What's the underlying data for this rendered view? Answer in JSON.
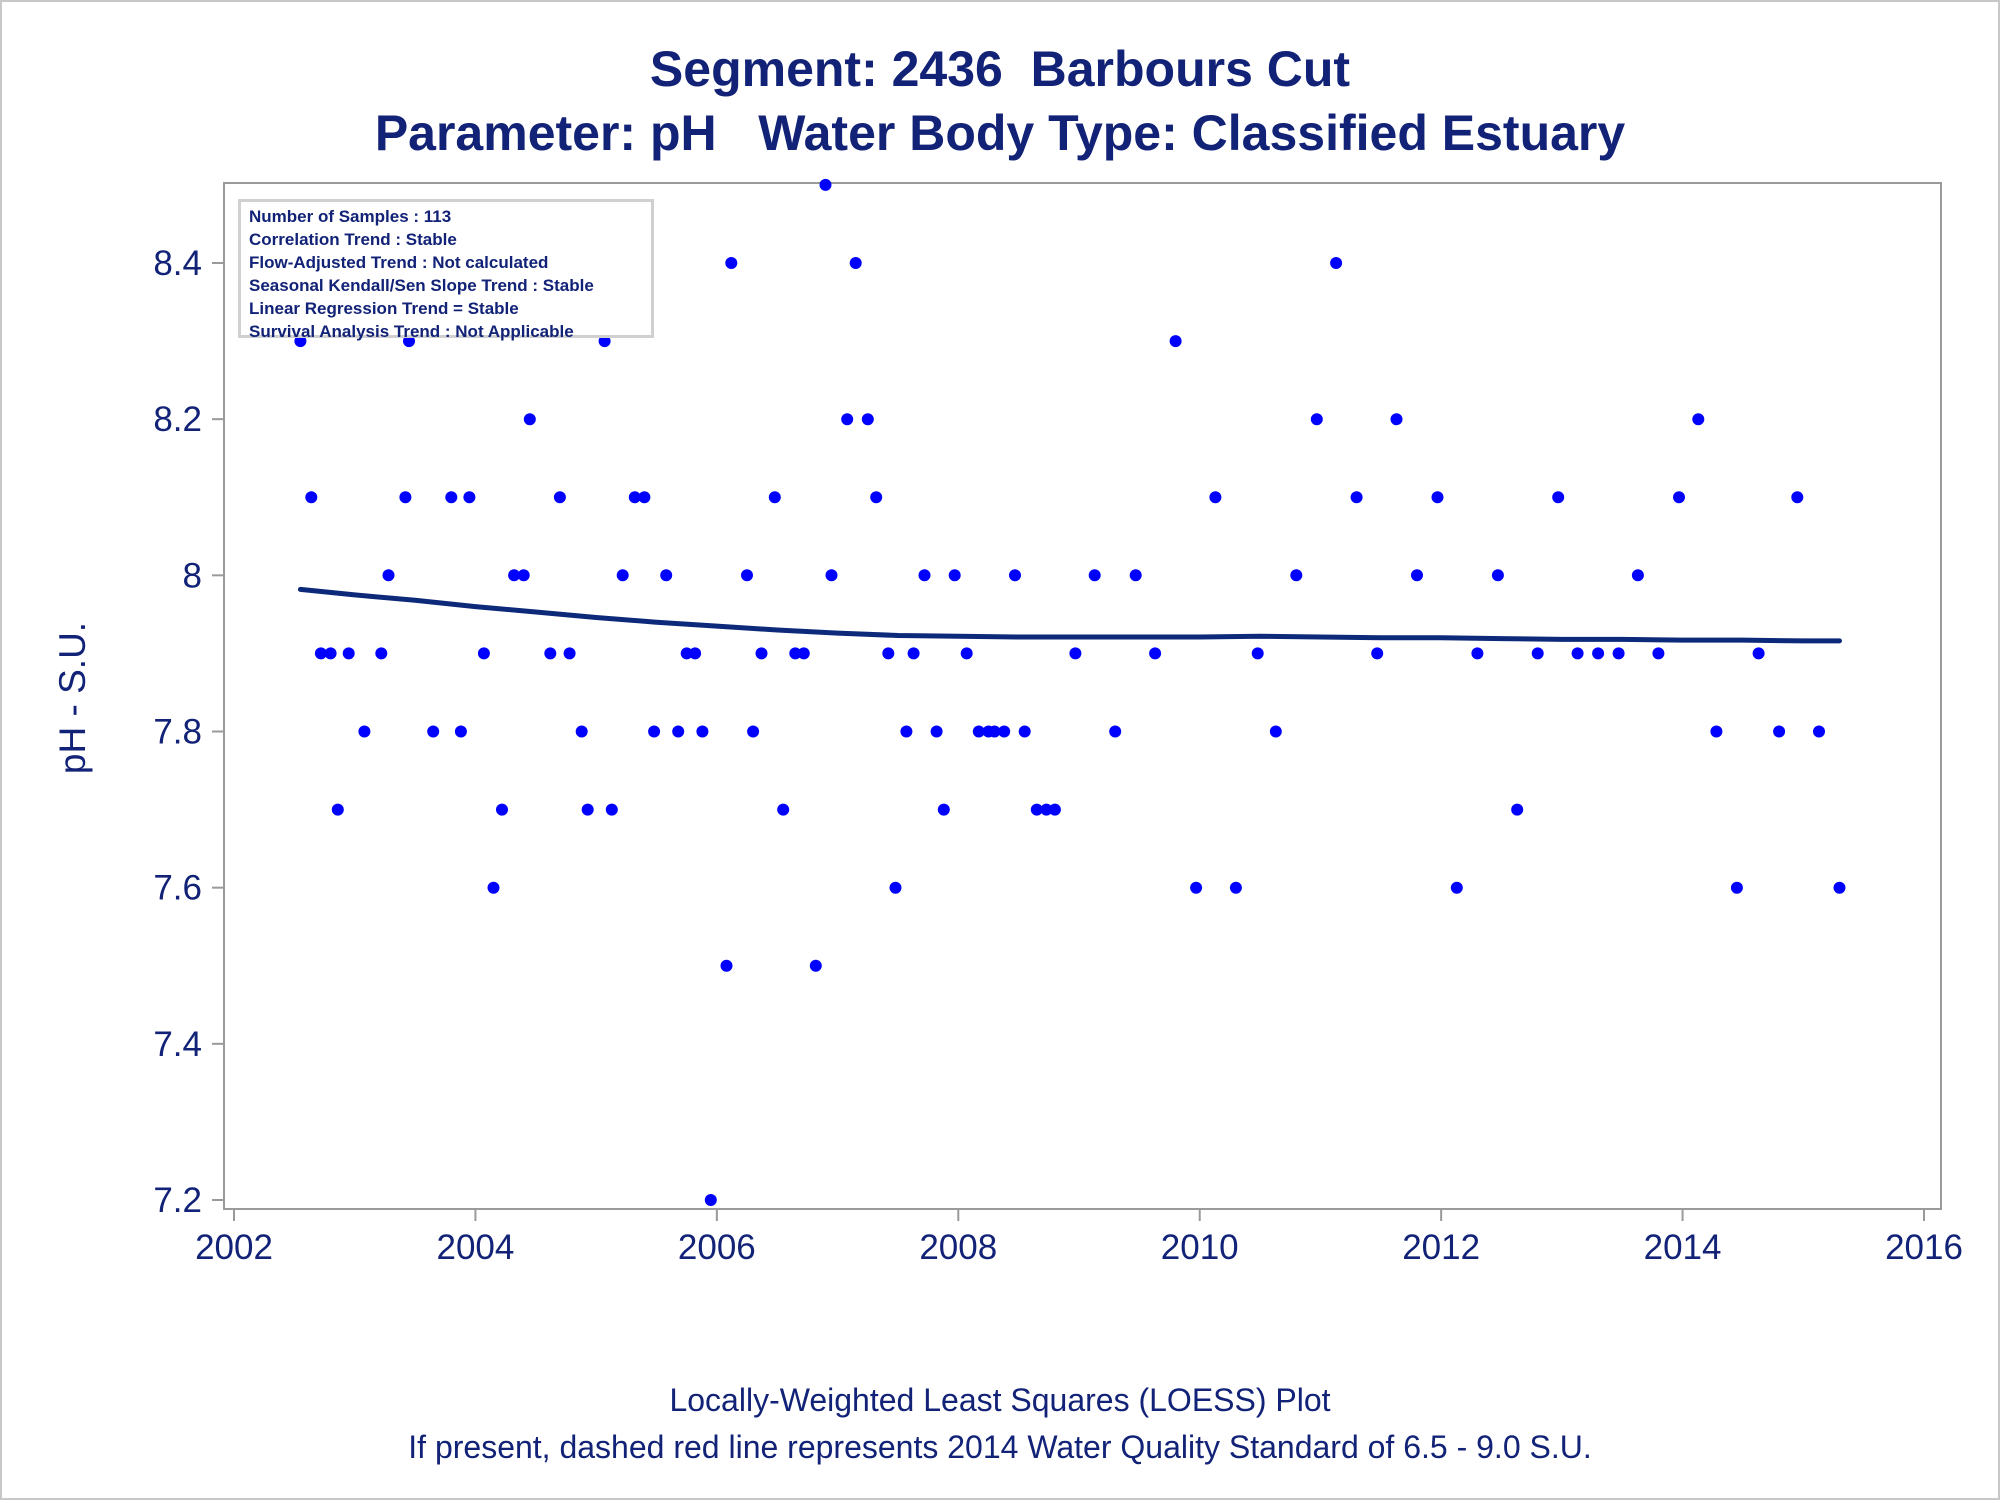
{
  "title_line1": "Segment: 2436  Barbours Cut",
  "title_line2": "Parameter: pH   Water Body Type: Classified Estuary",
  "footnote_line1": "Locally-Weighted Least Squares (LOESS) Plot",
  "footnote_line2": "If present, dashed red line represents 2014 Water Quality Standard of 6.5 - 9.0 S.U.",
  "info_box": [
    "Number of Samples : 113",
    "Correlation Trend : Stable",
    "Flow-Adjusted Trend : Not calculated",
    "Seasonal Kendall/Sen Slope Trend : Stable",
    "Linear Regression Trend = Stable",
    "Survival Analysis Trend : Not Applicable"
  ],
  "colors": {
    "text": "#112277",
    "points": "#0000ff",
    "loess_line": "#0d2a7a",
    "axis": "#9a9a9a"
  },
  "chart_data": {
    "type": "scatter",
    "xlabel": "",
    "ylabel": "pH - S.U.",
    "xlim": [
      2002,
      2016
    ],
    "ylim": [
      7.2,
      8.52
    ],
    "x_ticks": [
      2002,
      2004,
      2006,
      2008,
      2010,
      2012,
      2014,
      2016
    ],
    "y_ticks": [
      7.2,
      7.4,
      7.6,
      7.8,
      8,
      8.2,
      8.4
    ],
    "y_tick_labels": [
      "7.2",
      "7.4",
      "7.6",
      "7.8",
      "8",
      "8.2",
      "8.4"
    ],
    "grid": false,
    "series": [
      {
        "type": "scatter",
        "points": [
          [
            2002.55,
            8.3
          ],
          [
            2002.64,
            8.1
          ],
          [
            2002.72,
            7.9
          ],
          [
            2002.8,
            7.9
          ],
          [
            2002.86,
            7.7
          ],
          [
            2002.95,
            7.9
          ],
          [
            2003.08,
            7.8
          ],
          [
            2003.13,
            8.4
          ],
          [
            2003.22,
            7.9
          ],
          [
            2003.28,
            8.0
          ],
          [
            2003.42,
            8.1
          ],
          [
            2003.45,
            8.3
          ],
          [
            2003.65,
            7.8
          ],
          [
            2003.8,
            8.1
          ],
          [
            2003.88,
            7.8
          ],
          [
            2003.95,
            8.1
          ],
          [
            2004.07,
            7.9
          ],
          [
            2004.15,
            7.6
          ],
          [
            2004.22,
            7.7
          ],
          [
            2004.32,
            8.0
          ],
          [
            2004.4,
            8.0
          ],
          [
            2004.45,
            8.2
          ],
          [
            2004.55,
            8.4
          ],
          [
            2004.62,
            7.9
          ],
          [
            2004.7,
            8.1
          ],
          [
            2004.78,
            7.9
          ],
          [
            2004.88,
            7.8
          ],
          [
            2004.93,
            7.7
          ],
          [
            2005.07,
            8.3
          ],
          [
            2005.13,
            7.7
          ],
          [
            2005.22,
            8.0
          ],
          [
            2005.32,
            8.1
          ],
          [
            2005.4,
            8.1
          ],
          [
            2005.48,
            7.8
          ],
          [
            2005.58,
            8.0
          ],
          [
            2005.68,
            7.8
          ],
          [
            2005.75,
            7.9
          ],
          [
            2005.82,
            7.9
          ],
          [
            2005.88,
            7.8
          ],
          [
            2005.95,
            7.2
          ],
          [
            2006.08,
            7.5
          ],
          [
            2006.12,
            8.4
          ],
          [
            2006.25,
            8.0
          ],
          [
            2006.3,
            7.8
          ],
          [
            2006.37,
            7.9
          ],
          [
            2006.48,
            8.1
          ],
          [
            2006.55,
            7.7
          ],
          [
            2006.65,
            7.9
          ],
          [
            2006.72,
            7.9
          ],
          [
            2006.82,
            7.5
          ],
          [
            2006.9,
            8.5
          ],
          [
            2006.95,
            8.0
          ],
          [
            2007.08,
            8.2
          ],
          [
            2007.15,
            8.4
          ],
          [
            2007.25,
            8.2
          ],
          [
            2007.32,
            8.1
          ],
          [
            2007.42,
            7.9
          ],
          [
            2007.48,
            7.6
          ],
          [
            2007.57,
            7.8
          ],
          [
            2007.63,
            7.9
          ],
          [
            2007.72,
            8.0
          ],
          [
            2007.82,
            7.8
          ],
          [
            2007.88,
            7.7
          ],
          [
            2007.97,
            8.0
          ],
          [
            2008.07,
            7.9
          ],
          [
            2008.17,
            7.8
          ],
          [
            2008.25,
            7.8
          ],
          [
            2008.3,
            7.8
          ],
          [
            2008.38,
            7.8
          ],
          [
            2008.47,
            8.0
          ],
          [
            2008.55,
            7.8
          ],
          [
            2008.65,
            7.7
          ],
          [
            2008.73,
            7.7
          ],
          [
            2008.8,
            7.7
          ],
          [
            2008.97,
            7.9
          ],
          [
            2009.13,
            8.0
          ],
          [
            2009.3,
            7.8
          ],
          [
            2009.47,
            8.0
          ],
          [
            2009.63,
            7.9
          ],
          [
            2009.8,
            8.3
          ],
          [
            2009.97,
            7.6
          ],
          [
            2010.13,
            8.1
          ],
          [
            2010.3,
            7.6
          ],
          [
            2010.48,
            7.9
          ],
          [
            2010.63,
            7.8
          ],
          [
            2010.8,
            8.0
          ],
          [
            2010.97,
            8.2
          ],
          [
            2011.13,
            8.4
          ],
          [
            2011.3,
            8.1
          ],
          [
            2011.47,
            7.9
          ],
          [
            2011.63,
            8.2
          ],
          [
            2011.8,
            8.0
          ],
          [
            2011.97,
            8.1
          ],
          [
            2012.13,
            7.6
          ],
          [
            2012.3,
            7.9
          ],
          [
            2012.47,
            8.0
          ],
          [
            2012.63,
            7.7
          ],
          [
            2012.8,
            7.9
          ],
          [
            2012.97,
            8.1
          ],
          [
            2013.13,
            7.9
          ],
          [
            2013.3,
            7.9
          ],
          [
            2013.47,
            7.9
          ],
          [
            2013.63,
            8.0
          ],
          [
            2013.8,
            7.9
          ],
          [
            2013.97,
            8.1
          ],
          [
            2014.13,
            8.2
          ],
          [
            2014.28,
            7.8
          ],
          [
            2014.45,
            7.6
          ],
          [
            2014.63,
            7.9
          ],
          [
            2014.8,
            7.8
          ],
          [
            2014.95,
            8.1
          ],
          [
            2015.13,
            7.8
          ],
          [
            2015.3,
            7.6
          ]
        ]
      },
      {
        "type": "line",
        "points": [
          [
            2002.55,
            7.982
          ],
          [
            2003.0,
            7.975
          ],
          [
            2003.5,
            7.968
          ],
          [
            2004.0,
            7.96
          ],
          [
            2004.5,
            7.953
          ],
          [
            2005.0,
            7.946
          ],
          [
            2005.5,
            7.94
          ],
          [
            2006.0,
            7.935
          ],
          [
            2006.5,
            7.93
          ],
          [
            2007.0,
            7.926
          ],
          [
            2007.5,
            7.923
          ],
          [
            2008.0,
            7.922
          ],
          [
            2008.5,
            7.921
          ],
          [
            2009.0,
            7.921
          ],
          [
            2009.5,
            7.921
          ],
          [
            2010.0,
            7.921
          ],
          [
            2010.5,
            7.922
          ],
          [
            2011.0,
            7.921
          ],
          [
            2011.5,
            7.92
          ],
          [
            2012.0,
            7.92
          ],
          [
            2012.5,
            7.919
          ],
          [
            2013.0,
            7.918
          ],
          [
            2013.5,
            7.918
          ],
          [
            2014.0,
            7.917
          ],
          [
            2014.5,
            7.917
          ],
          [
            2015.0,
            7.916
          ],
          [
            2015.3,
            7.916
          ]
        ]
      }
    ]
  }
}
